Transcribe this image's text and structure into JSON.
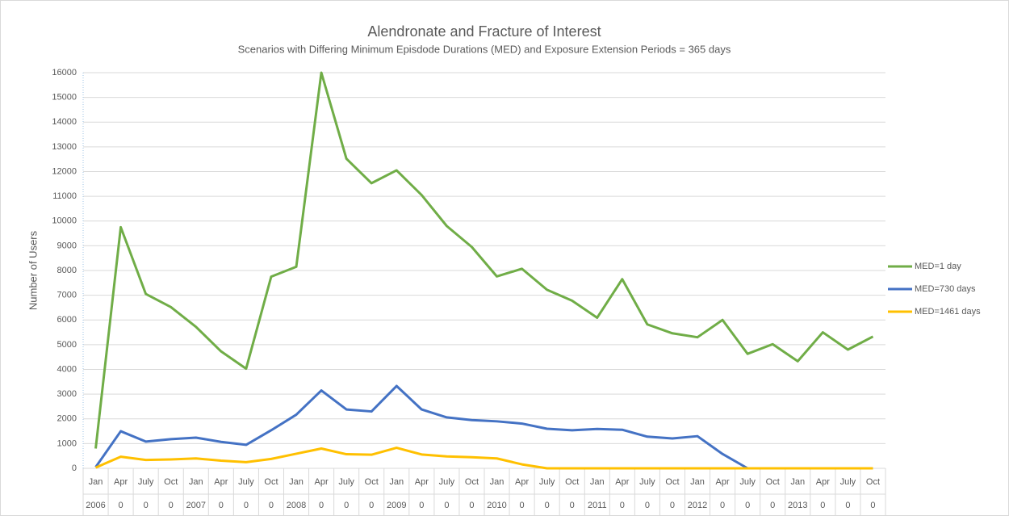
{
  "chart_data": {
    "type": "line",
    "title": "Alendronate and Fracture of Interest",
    "subtitle": "Scenarios with Differing Minimum Episdode Durations (MED) and Exposure Extension Periods = 365 days",
    "y_label": "Number of Users",
    "categories": [
      "Jan",
      "Apr",
      "July",
      "Oct",
      "Jan",
      "Apr",
      "July",
      "Oct",
      "Jan",
      "Apr",
      "July",
      "Oct",
      "Jan",
      "Apr",
      "July",
      "Oct",
      "Jan",
      "Apr",
      "July",
      "Oct",
      "Jan",
      "Apr",
      "July",
      "Oct",
      "Jan",
      "Apr",
      "July",
      "Oct",
      "Jan",
      "Apr",
      "July",
      "Oct"
    ],
    "category_years": [
      "2006",
      "0",
      "0",
      "0",
      "2007",
      "0",
      "0",
      "0",
      "2008",
      "0",
      "0",
      "0",
      "2009",
      "0",
      "0",
      "0",
      "2010",
      "0",
      "0",
      "0",
      "2011",
      "0",
      "0",
      "0",
      "2012",
      "0",
      "0",
      "0",
      "2013",
      "0",
      "0",
      "0"
    ],
    "series": [
      {
        "name": "MED=1 day",
        "color": "#70ad47",
        "values": [
          800,
          9750,
          7050,
          6520,
          5720,
          4730,
          4030,
          7750,
          8150,
          16000,
          12520,
          11530,
          12050,
          11050,
          9800,
          8950,
          7760,
          8070,
          7220,
          6780,
          6090,
          7650,
          5820,
          5460,
          5300,
          6000,
          4630,
          5020,
          4330,
          5500,
          4800,
          5330
        ]
      },
      {
        "name": "MED=730 days",
        "color": "#4472c4",
        "values": [
          50,
          1500,
          1080,
          1180,
          1240,
          1070,
          950,
          1540,
          2170,
          3150,
          2380,
          2300,
          3330,
          2380,
          2060,
          1950,
          1900,
          1810,
          1600,
          1540,
          1590,
          1560,
          1280,
          1210,
          1300,
          580,
          0,
          0,
          0,
          0,
          0,
          0
        ]
      },
      {
        "name": "MED=1461 days",
        "color": "#ffc000",
        "values": [
          30,
          470,
          340,
          360,
          400,
          310,
          250,
          380,
          590,
          800,
          570,
          550,
          830,
          560,
          480,
          450,
          400,
          160,
          0,
          0,
          0,
          0,
          0,
          0,
          0,
          0,
          0,
          0,
          0,
          0,
          0,
          0
        ]
      }
    ],
    "ylim": [
      0,
      16000
    ],
    "yticks": [
      0,
      1000,
      2000,
      3000,
      4000,
      5000,
      6000,
      7000,
      8000,
      9000,
      10000,
      11000,
      12000,
      13000,
      14000,
      15000,
      16000
    ],
    "grid": true,
    "legend": "right"
  }
}
